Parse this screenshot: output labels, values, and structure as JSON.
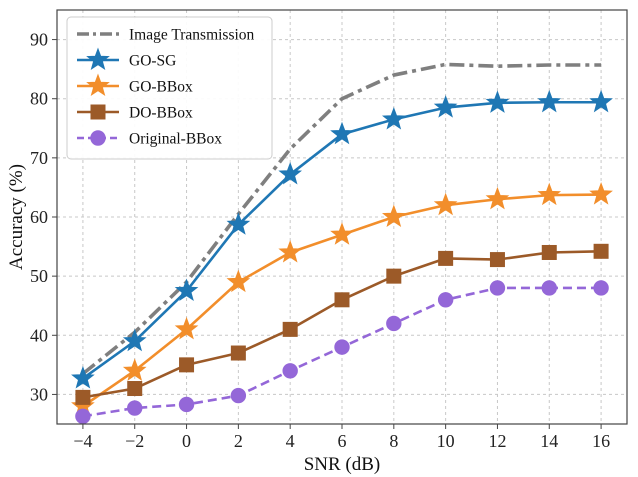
{
  "chart_data": {
    "type": "line",
    "title": "",
    "xlabel": "SNR (dB)",
    "ylabel": "Accuracy (%)",
    "x": [
      -4,
      -2,
      0,
      2,
      4,
      6,
      8,
      10,
      12,
      14,
      16
    ],
    "xlim": [
      -5,
      17
    ],
    "ylim": [
      25,
      95
    ],
    "xticks": [
      -4,
      -2,
      0,
      2,
      4,
      6,
      8,
      10,
      12,
      14,
      16
    ],
    "xtick_labels": [
      "−4",
      "−2",
      "0",
      "2",
      "4",
      "6",
      "8",
      "10",
      "12",
      "14",
      "16"
    ],
    "yticks": [
      30,
      40,
      50,
      60,
      70,
      80,
      90
    ],
    "ytick_labels": [
      "30",
      "40",
      "50",
      "60",
      "70",
      "80",
      "90"
    ],
    "grid": true,
    "legend_position": "top-left",
    "series": [
      {
        "name": "Image Transmission",
        "values": [
          33.5,
          40.5,
          49,
          60.5,
          71.5,
          80,
          84,
          85.8,
          85.5,
          85.7,
          85.7
        ],
        "color": "#7f7f7f",
        "line_style": "dashdot",
        "marker": "none"
      },
      {
        "name": "GO-SG",
        "values": [
          32.7,
          39,
          47.5,
          58.7,
          67.2,
          74,
          76.5,
          78.5,
          79.3,
          79.4,
          79.4
        ],
        "color": "#1f77b4",
        "line_style": "solid",
        "marker": "star"
      },
      {
        "name": "GO-BBox",
        "values": [
          28,
          34,
          41,
          49,
          54,
          57,
          60,
          62,
          63,
          63.7,
          63.8
        ],
        "color": "#f28e2b",
        "line_style": "solid",
        "marker": "star"
      },
      {
        "name": "DO-BBox",
        "values": [
          29.5,
          31,
          35,
          37,
          41,
          46,
          50,
          53,
          52.8,
          54,
          54.2
        ],
        "color": "#9c5a28",
        "line_style": "solid",
        "marker": "square"
      },
      {
        "name": "Original-BBox",
        "values": [
          26.3,
          27.7,
          28.3,
          29.8,
          34,
          38,
          42,
          46,
          48,
          48,
          48
        ],
        "color": "#9467d8",
        "line_style": "dashed",
        "marker": "circle"
      }
    ]
  }
}
